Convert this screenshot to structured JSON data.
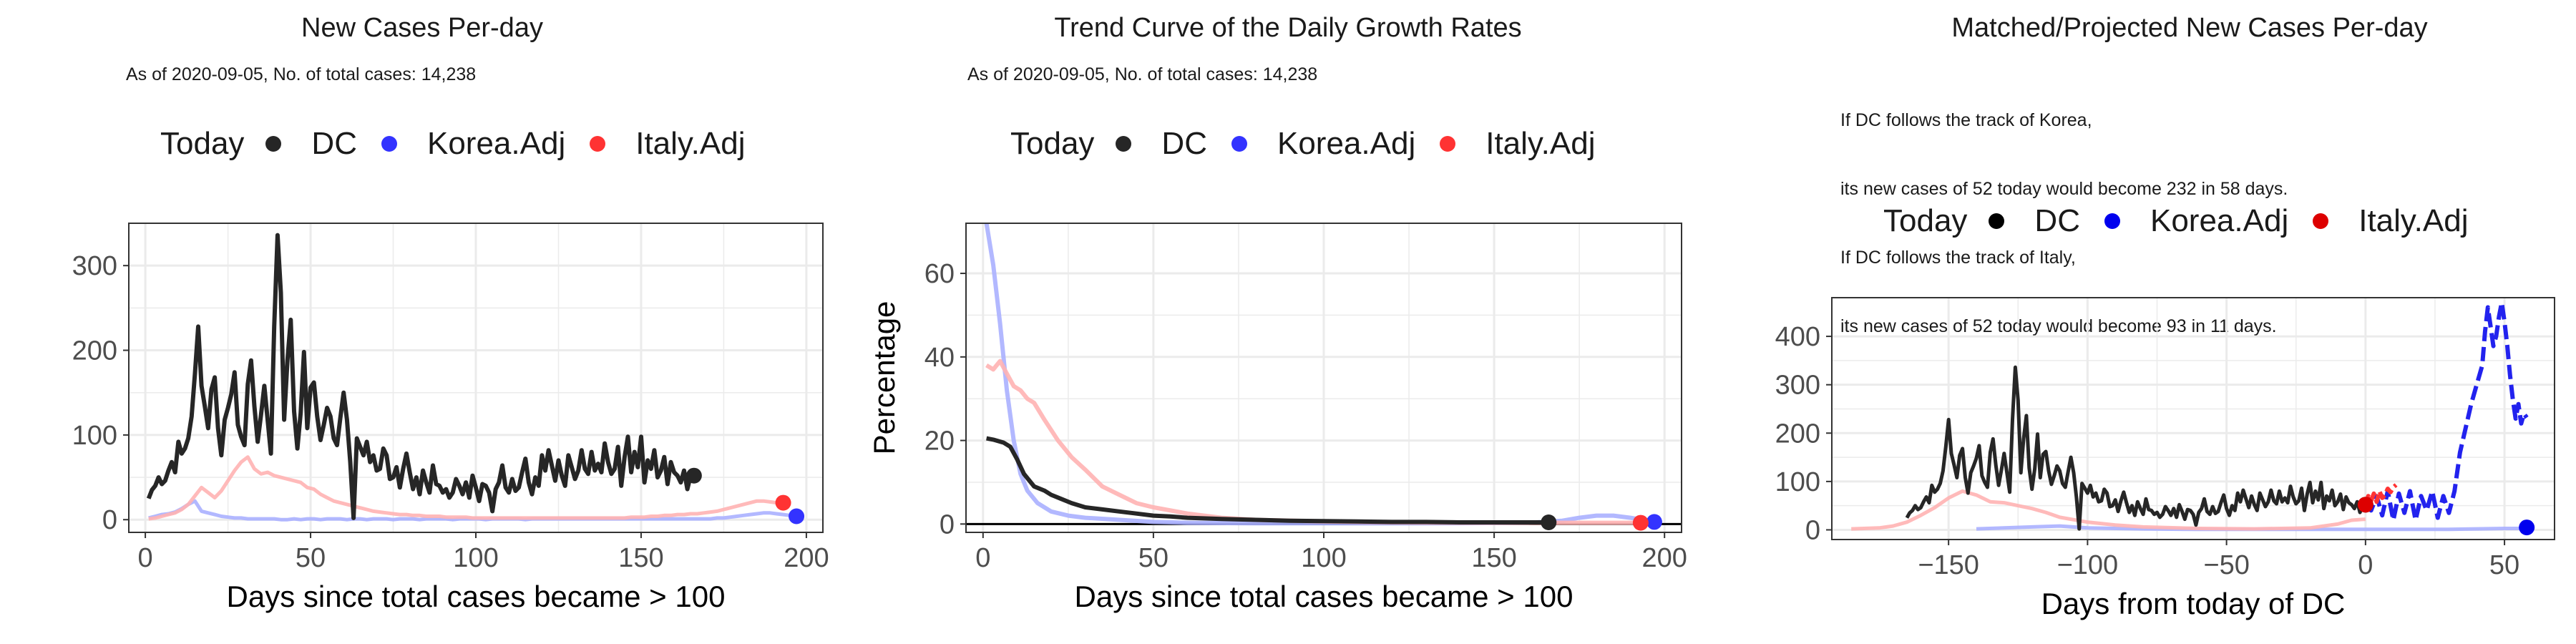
{
  "colors": {
    "dc": "#262626",
    "korea": "#3333ff",
    "italy": "#ff3333",
    "korea_light": "#aab0ff",
    "italy_light": "#ffb3b3",
    "grid": "#ebebeb",
    "projection": "#2222ee"
  },
  "chart_data": [
    {
      "type": "line",
      "title": "New Cases Per-day",
      "subtitle": "As of 2020-09-05, No. of total cases: 14,238",
      "xlabel": "Days since total cases became > 100",
      "ylabel": "",
      "xlim": [
        -5,
        205
      ],
      "ylim": [
        -15,
        350
      ],
      "xticks": [
        0,
        50,
        100,
        150,
        200
      ],
      "yticks": [
        0,
        100,
        200,
        300
      ],
      "grid": true,
      "legend_position": "top",
      "legend": {
        "title": "Today",
        "items": [
          "DC",
          "Korea.Adj",
          "Italy.Adj"
        ]
      },
      "series": [
        {
          "name": "DC",
          "x_start": 1,
          "x_step": 1,
          "values": [
            25,
            35,
            40,
            50,
            42,
            46,
            58,
            68,
            56,
            92,
            78,
            84,
            96,
            122,
            172,
            228,
            158,
            134,
            108,
            154,
            168,
            108,
            76,
            118,
            132,
            148,
            174,
            112,
            98,
            88,
            160,
            188,
            134,
            92,
            124,
            158,
            118,
            78,
            228,
            336,
            268,
            118,
            188,
            236,
            128,
            84,
            126,
            198,
            108,
            156,
            162,
            122,
            94,
            112,
            132,
            122,
            96,
            88,
            120,
            150,
            118,
            68,
            2,
            96,
            86,
            76,
            92,
            68,
            76,
            58,
            60,
            84,
            76,
            48,
            50,
            62,
            38,
            60,
            78,
            56,
            36,
            50,
            30,
            58,
            44,
            32,
            64,
            42,
            40,
            32,
            36,
            26,
            32,
            48,
            40,
            30,
            44,
            26,
            52,
            38,
            22,
            42,
            40,
            32,
            10,
            36,
            44,
            64,
            38,
            32,
            48,
            34,
            38,
            56,
            72,
            44,
            30,
            50,
            40,
            76,
            58,
            82,
            64,
            46,
            70,
            52,
            40,
            76,
            62,
            48,
            58,
            82,
            60,
            54,
            80,
            58,
            66,
            56,
            90,
            68,
            54,
            60,
            86,
            40,
            74,
            98,
            56,
            80,
            62,
            98,
            44,
            70,
            60,
            82,
            50,
            58,
            74,
            42,
            68,
            56,
            52,
            44,
            58,
            36,
            52,
            50
          ]
        },
        {
          "name": "Korea.Adj",
          "x_start": 1,
          "x_step": 2,
          "values": [
            2,
            4,
            6,
            7,
            9,
            13,
            18,
            22,
            10,
            8,
            6,
            4,
            3,
            2,
            2,
            1,
            1,
            1,
            1,
            1,
            0,
            0,
            1,
            0,
            1,
            1,
            0,
            1,
            1,
            1,
            0,
            1,
            1,
            0,
            1,
            1,
            1,
            0,
            1,
            1,
            1,
            0,
            1,
            1,
            1,
            1,
            0,
            1,
            1,
            1,
            1,
            0,
            1,
            1,
            1,
            1,
            1,
            0,
            1,
            1,
            1,
            1,
            1,
            1,
            1,
            1,
            1,
            1,
            1,
            1,
            1,
            1,
            1,
            1,
            1,
            1,
            1,
            1,
            1,
            1,
            1,
            1,
            1,
            1,
            1,
            1,
            2,
            2,
            3,
            4,
            5,
            6,
            7,
            8,
            8,
            7,
            6,
            5,
            3
          ]
        },
        {
          "name": "Italy.Adj",
          "x_start": 1,
          "x_step": 2,
          "values": [
            1,
            2,
            4,
            6,
            8,
            12,
            18,
            28,
            38,
            32,
            26,
            34,
            46,
            58,
            68,
            74,
            60,
            54,
            56,
            52,
            50,
            48,
            46,
            44,
            38,
            36,
            30,
            26,
            22,
            20,
            18,
            16,
            14,
            12,
            10,
            9,
            8,
            7,
            6,
            6,
            5,
            5,
            4,
            4,
            4,
            3,
            3,
            3,
            3,
            2,
            2,
            2,
            2,
            2,
            2,
            2,
            2,
            2,
            2,
            2,
            2,
            2,
            2,
            2,
            2,
            2,
            2,
            2,
            2,
            2,
            2,
            2,
            2,
            3,
            3,
            3,
            4,
            4,
            5,
            5,
            6,
            6,
            7,
            7,
            8,
            9,
            10,
            12,
            14,
            16,
            18,
            20,
            22,
            22,
            21,
            20,
            20
          ]
        }
      ],
      "today_points": [
        {
          "name": "DC",
          "x": 166,
          "y": 52
        },
        {
          "name": "Korea.Adj",
          "x": 197,
          "y": 4
        },
        {
          "name": "Italy.Adj",
          "x": 193,
          "y": 20
        }
      ]
    },
    {
      "type": "line",
      "title": "Trend Curve of the Daily Growth Rates",
      "subtitle": "As of 2020-09-05, No. of total cases: 14,238",
      "xlabel": "Days since total cases became > 100",
      "ylabel": "Percentage",
      "xlim": [
        -5,
        205
      ],
      "ylim": [
        -2,
        72
      ],
      "xticks": [
        0,
        50,
        100,
        150,
        200
      ],
      "yticks": [
        0,
        20,
        40,
        60
      ],
      "grid": true,
      "legend_position": "top",
      "hline": 0,
      "legend": {
        "title": "Today",
        "items": [
          "DC",
          "Korea.Adj",
          "Italy.Adj"
        ]
      },
      "series": [
        {
          "name": "DC",
          "x": [
            1,
            3,
            6,
            8,
            10,
            12,
            15,
            18,
            20,
            23,
            26,
            30,
            35,
            40,
            45,
            50,
            55,
            60,
            70,
            80,
            90,
            100,
            110,
            120,
            130,
            140,
            150,
            160,
            166
          ],
          "values": [
            20.5,
            20.2,
            19.5,
            18.5,
            15.5,
            12,
            9,
            8,
            7,
            6,
            5,
            4,
            3.5,
            3,
            2.5,
            2,
            1.8,
            1.5,
            1.2,
            1.0,
            0.8,
            0.7,
            0.6,
            0.5,
            0.5,
            0.4,
            0.4,
            0.4,
            0.4
          ]
        },
        {
          "name": "Korea.Adj",
          "x": [
            1,
            3,
            5,
            7,
            9,
            11,
            13,
            16,
            20,
            25,
            30,
            40,
            50,
            60,
            80,
            100,
            120,
            140,
            160,
            170,
            175,
            180,
            185,
            190,
            195,
            197
          ],
          "values": [
            72,
            62,
            48,
            32,
            20,
            12,
            8,
            5,
            3,
            2,
            1.5,
            1,
            0.5,
            0.3,
            0.2,
            0.2,
            0.2,
            0.2,
            0.3,
            0.8,
            1.5,
            2.0,
            2.0,
            1.5,
            0.8,
            0.5
          ]
        },
        {
          "name": "Italy.Adj",
          "x": [
            1,
            3,
            5,
            7,
            9,
            11,
            13,
            15,
            18,
            22,
            26,
            30,
            35,
            40,
            45,
            50,
            60,
            70,
            80,
            100,
            120,
            140,
            160,
            180,
            193
          ],
          "values": [
            38,
            37,
            39,
            36,
            33,
            32,
            30,
            29,
            25,
            20,
            16,
            13,
            9,
            7,
            5,
            4,
            2.5,
            1.5,
            1,
            0.6,
            0.4,
            0.3,
            0.3,
            0.3,
            0.3
          ]
        }
      ],
      "today_points": [
        {
          "name": "DC",
          "x": 166,
          "y": 0.4
        },
        {
          "name": "Korea.Adj",
          "x": 197,
          "y": 0.5
        },
        {
          "name": "Italy.Adj",
          "x": 193,
          "y": 0.3
        }
      ]
    },
    {
      "type": "line",
      "title": "Matched/Projected New Cases Per-day",
      "annotation_lines": [
        "If DC follows the track of Korea,",
        "its new cases of 52 today would become 232 in 58 days.",
        "If DC follows the track of Italy,",
        "its new cases of 52 today would become 93 in 11 days."
      ],
      "xlabel": "Days from today of DC",
      "ylabel": "",
      "xlim": [
        -192,
        68
      ],
      "ylim": [
        -20,
        480
      ],
      "xticks": [
        -150,
        -100,
        -50,
        0,
        50
      ],
      "yticks": [
        0,
        100,
        200,
        300,
        400
      ],
      "grid": true,
      "legend_position": "top",
      "legend": {
        "title": "Today",
        "items": [
          "DC",
          "Korea.Adj",
          "Italy.Adj"
        ]
      },
      "series": [
        {
          "name": "DC",
          "x_start": -165,
          "x_step": 1,
          "source_series": "DC of chart 1"
        },
        {
          "name": "Korea.Adj (history)",
          "x": [
            -140,
            -130,
            -120,
            -110,
            -100,
            -80,
            -60,
            -40,
            -20,
            0,
            10,
            20,
            30,
            40,
            50,
            58
          ],
          "values": [
            2,
            4,
            6,
            8,
            4,
            2,
            1,
            1,
            1,
            1,
            1,
            1,
            1,
            2,
            3,
            3
          ]
        },
        {
          "name": "Italy.Adj (history)",
          "x": [
            -185,
            -175,
            -170,
            -165,
            -160,
            -155,
            -150,
            -145,
            -140,
            -135,
            -130,
            -125,
            -120,
            -115,
            -110,
            -100,
            -90,
            -80,
            -60,
            -40,
            -20,
            -10,
            -5,
            0
          ],
          "values": [
            2,
            4,
            8,
            16,
            30,
            46,
            66,
            80,
            72,
            58,
            56,
            50,
            44,
            36,
            26,
            16,
            10,
            6,
            3,
            2,
            4,
            12,
            20,
            22
          ]
        },
        {
          "name": "Korea.Adj projection",
          "x": [
            0,
            2,
            4,
            6,
            8,
            10,
            12,
            14,
            16,
            18,
            20,
            22,
            24,
            26,
            28,
            30,
            32,
            34,
            36,
            38,
            40,
            42,
            43,
            44,
            45,
            46,
            47,
            48,
            49,
            50,
            51,
            52,
            53,
            54,
            55,
            56,
            57,
            58
          ],
          "values": [
            52,
            40,
            70,
            30,
            80,
            20,
            75,
            35,
            80,
            20,
            70,
            40,
            80,
            25,
            70,
            35,
            80,
            160,
            210,
            260,
            300,
            340,
            410,
            460,
            420,
            380,
            400,
            440,
            470,
            430,
            380,
            320,
            270,
            230,
            260,
            220,
            240,
            232
          ]
        },
        {
          "name": "Italy.Adj projection",
          "x": [
            0,
            1,
            2,
            3,
            4,
            5,
            6,
            7,
            8,
            9,
            10,
            11
          ],
          "values": [
            52,
            70,
            60,
            75,
            58,
            80,
            66,
            72,
            85,
            78,
            88,
            93
          ]
        }
      ],
      "today_points": [
        {
          "name": "DC",
          "x": 0,
          "y": 52
        },
        {
          "name": "Korea.Adj",
          "x": 58,
          "y": 5
        },
        {
          "name": "Italy.Adj",
          "x": 0,
          "y": 52
        }
      ]
    }
  ]
}
